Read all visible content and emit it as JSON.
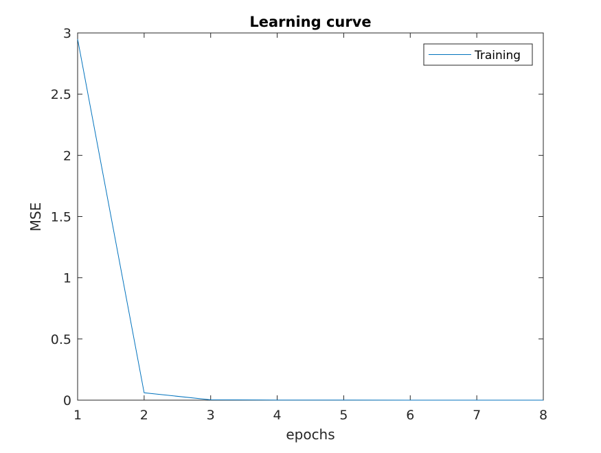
{
  "chart_data": {
    "type": "line",
    "title": "Learning curve",
    "xlabel": "epochs",
    "ylabel": "MSE",
    "xlim": [
      1,
      8
    ],
    "ylim": [
      0,
      3
    ],
    "xticks": [
      1,
      2,
      3,
      4,
      5,
      6,
      7,
      8
    ],
    "yticks": [
      0,
      0.5,
      1,
      1.5,
      2,
      2.5,
      3
    ],
    "xtick_labels": [
      "1",
      "2",
      "3",
      "4",
      "5",
      "6",
      "7",
      "8"
    ],
    "ytick_labels": [
      "0",
      "0.5",
      "1",
      "1.5",
      "2",
      "2.5",
      "3"
    ],
    "grid": false,
    "legend_position": "top-right",
    "series": [
      {
        "name": "Training",
        "color": "#0072BD",
        "x": [
          1,
          2,
          3,
          4,
          5,
          6,
          7,
          8
        ],
        "y": [
          2.95,
          0.06,
          0.003,
          0.001,
          0.0005,
          0.0003,
          0.0002,
          0.0001
        ]
      }
    ]
  }
}
